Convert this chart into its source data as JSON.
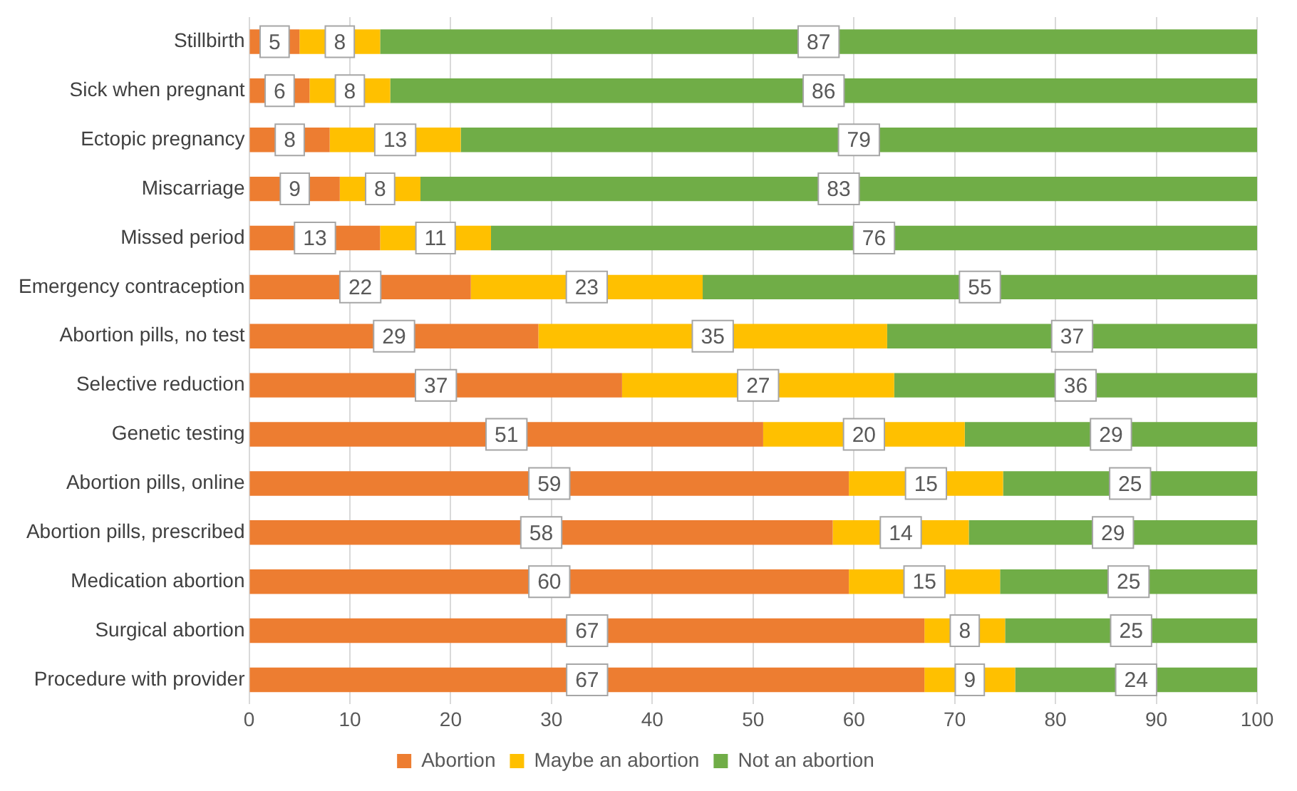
{
  "chart_data": {
    "type": "bar",
    "orientation": "horizontal",
    "stacked": true,
    "categories": [
      "Stillbirth",
      "Sick when pregnant",
      "Ectopic pregnancy",
      "Miscarriage",
      "Missed period",
      "Emergency contraception",
      "Abortion pills, no test",
      "Selective reduction",
      "Genetic testing",
      "Abortion pills, online",
      "Abortion pills, prescribed",
      "Medication abortion",
      "Surgical abortion",
      "Procedure with provider"
    ],
    "series": [
      {
        "name": "Abortion",
        "color": "#ed7d31",
        "values": [
          5,
          6,
          8,
          9,
          13,
          22,
          28.7,
          37,
          51,
          59.5,
          57.9,
          59.5,
          67,
          67
        ],
        "value_labels": [
          "5",
          "6",
          "8",
          "9",
          "13",
          "22",
          "29",
          "37",
          "51",
          "59",
          "58",
          "60",
          "67",
          "67"
        ]
      },
      {
        "name": "Maybe an abortion",
        "color": "#ffc000",
        "values": [
          8,
          8,
          13,
          8,
          11,
          23,
          34.6,
          27,
          20,
          15.3,
          13.5,
          15,
          8,
          9
        ],
        "value_labels": [
          "8",
          "8",
          "13",
          "8",
          "11",
          "23",
          "35",
          "27",
          "20",
          "15",
          "14",
          "15",
          "8",
          "9"
        ]
      },
      {
        "name": "Not an abortion",
        "color": "#70ad47",
        "values": [
          87,
          86,
          79,
          83,
          76,
          55,
          36.7,
          36,
          29,
          25.2,
          28.6,
          25.5,
          25,
          24
        ],
        "value_labels": [
          "87",
          "86",
          "79",
          "83",
          "76",
          "55",
          "37",
          "36",
          "29",
          "25",
          "29",
          "25",
          "25",
          "24"
        ]
      }
    ],
    "xlim": [
      0,
      100
    ],
    "xticks": [
      0,
      10,
      20,
      30,
      40,
      50,
      60,
      70,
      80,
      90,
      100
    ],
    "grid": "x",
    "legend": "bottom"
  }
}
